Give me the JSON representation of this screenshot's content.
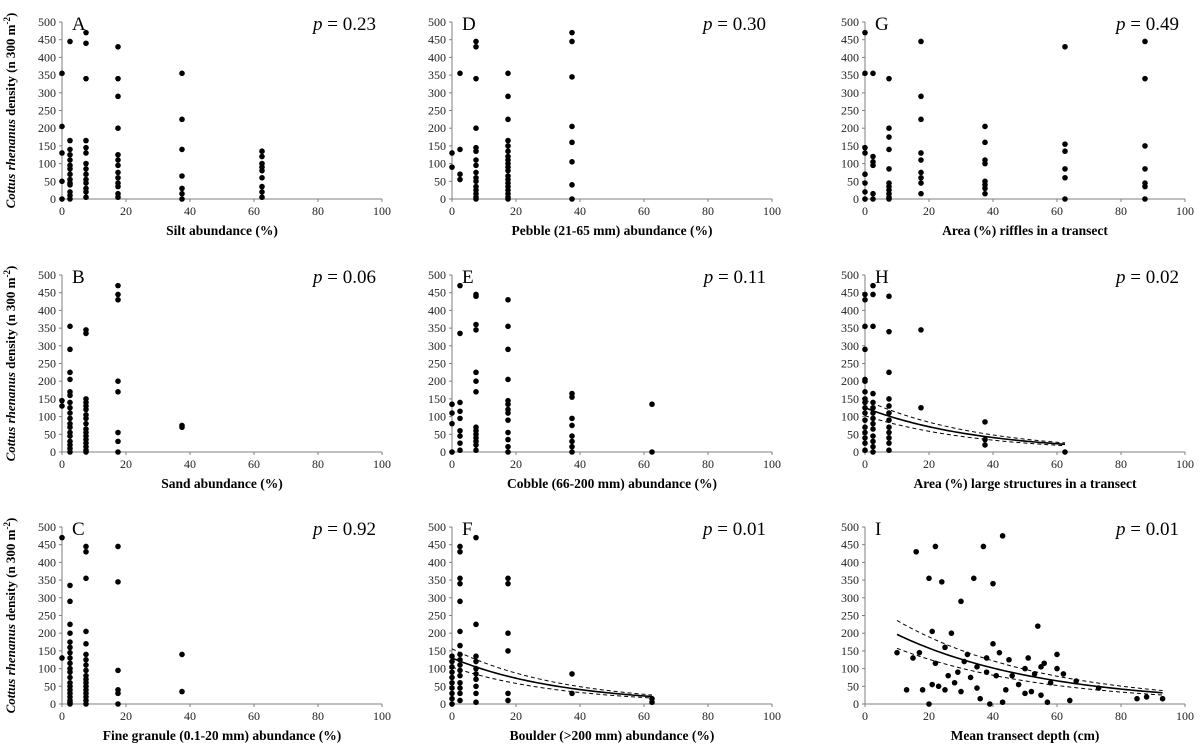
{
  "figure": {
    "ylabel_italic": "Cottus rhenanus",
    "ylabel_rest": " density (n 300 m",
    "ylabel_sup": "-2",
    "ylabel_close": ")"
  },
  "chart_data": [
    {
      "type": "scatter",
      "panel": "A",
      "xlabel": "Silt abundance (%)",
      "p_label": "p",
      "p_value": "= 0.23",
      "xlim": [
        0,
        100
      ],
      "ylim": [
        0,
        500
      ],
      "x": [
        0,
        0,
        0,
        0,
        0,
        2.5,
        2.5,
        2.5,
        2.5,
        2.5,
        2.5,
        2.5,
        2.5,
        2.5,
        2.5,
        2.5,
        2.5,
        2.5,
        2.5,
        7.5,
        7.5,
        7.5,
        7.5,
        7.5,
        7.5,
        7.5,
        7.5,
        7.5,
        7.5,
        7.5,
        7.5,
        7.5,
        7.5,
        17.5,
        17.5,
        17.5,
        17.5,
        17.5,
        17.5,
        17.5,
        17.5,
        17.5,
        17.5,
        17.5,
        17.5,
        17.5,
        37.5,
        37.5,
        37.5,
        37.5,
        37.5,
        37.5,
        37.5,
        62.5,
        62.5,
        62.5,
        62.5,
        62.5,
        62.5,
        62.5,
        62.5,
        62.5
      ],
      "y": [
        355,
        205,
        130,
        50,
        0,
        445,
        165,
        140,
        125,
        110,
        95,
        85,
        70,
        55,
        45,
        40,
        20,
        10,
        0,
        470,
        440,
        340,
        165,
        145,
        130,
        100,
        85,
        70,
        55,
        45,
        30,
        20,
        5,
        430,
        340,
        290,
        200,
        125,
        110,
        95,
        75,
        60,
        45,
        35,
        15,
        5,
        355,
        225,
        140,
        65,
        30,
        15,
        0,
        135,
        120,
        100,
        90,
        80,
        60,
        35,
        20,
        5
      ]
    },
    {
      "type": "scatter",
      "panel": "D",
      "xlabel": "Pebble (21-65 mm) abundance (%)",
      "p_label": "p",
      "p_value": "= 0.30",
      "xlim": [
        0,
        100
      ],
      "ylim": [
        0,
        500
      ],
      "x": [
        0,
        0,
        2.5,
        2.5,
        2.5,
        2.5,
        7.5,
        7.5,
        7.5,
        7.5,
        7.5,
        7.5,
        7.5,
        7.5,
        7.5,
        7.5,
        7.5,
        7.5,
        7.5,
        7.5,
        7.5,
        7.5,
        17.5,
        17.5,
        17.5,
        17.5,
        17.5,
        17.5,
        17.5,
        17.5,
        17.5,
        17.5,
        17.5,
        17.5,
        17.5,
        17.5,
        17.5,
        17.5,
        17.5,
        17.5,
        17.5,
        37.5,
        37.5,
        37.5,
        37.5,
        37.5,
        37.5,
        37.5,
        37.5
      ],
      "y": [
        130,
        90,
        355,
        140,
        70,
        55,
        445,
        430,
        340,
        200,
        145,
        135,
        110,
        95,
        75,
        60,
        50,
        35,
        25,
        15,
        5,
        0,
        355,
        290,
        225,
        165,
        150,
        135,
        120,
        110,
        100,
        90,
        80,
        65,
        55,
        45,
        35,
        25,
        15,
        5,
        0,
        470,
        445,
        345,
        205,
        160,
        105,
        40,
        0
      ]
    },
    {
      "type": "scatter",
      "panel": "G",
      "xlabel": "Area (%) riffles in a transect",
      "p_label": "p",
      "p_value": "= 0.49",
      "xlim": [
        0,
        100
      ],
      "ylim": [
        0,
        500
      ],
      "x": [
        0,
        0,
        0,
        0,
        0,
        0,
        0,
        0,
        2.5,
        2.5,
        2.5,
        2.5,
        2.5,
        2.5,
        7.5,
        7.5,
        7.5,
        7.5,
        7.5,
        7.5,
        7.5,
        7.5,
        7.5,
        7.5,
        7.5,
        17.5,
        17.5,
        17.5,
        17.5,
        17.5,
        17.5,
        17.5,
        17.5,
        17.5,
        37.5,
        37.5,
        37.5,
        37.5,
        37.5,
        37.5,
        37.5,
        37.5,
        62.5,
        62.5,
        62.5,
        62.5,
        62.5,
        62.5,
        87.5,
        87.5,
        87.5,
        87.5,
        87.5,
        87.5,
        87.5
      ],
      "y": [
        470,
        355,
        145,
        130,
        70,
        45,
        20,
        0,
        355,
        120,
        105,
        95,
        15,
        0,
        340,
        200,
        175,
        140,
        85,
        45,
        35,
        25,
        15,
        5,
        0,
        445,
        290,
        225,
        130,
        110,
        75,
        60,
        45,
        15,
        205,
        160,
        110,
        100,
        50,
        40,
        30,
        15,
        430,
        155,
        135,
        85,
        60,
        0,
        445,
        340,
        150,
        85,
        45,
        35,
        0
      ]
    },
    {
      "type": "scatter",
      "panel": "B",
      "xlabel": "Sand abundance (%)",
      "p_label": "p",
      "p_value": "= 0.06",
      "xlim": [
        0,
        100
      ],
      "ylim": [
        0,
        500
      ],
      "x": [
        0,
        0,
        2.5,
        2.5,
        2.5,
        2.5,
        2.5,
        2.5,
        2.5,
        2.5,
        2.5,
        2.5,
        2.5,
        2.5,
        2.5,
        2.5,
        2.5,
        2.5,
        2.5,
        2.5,
        7.5,
        7.5,
        7.5,
        7.5,
        7.5,
        7.5,
        7.5,
        7.5,
        7.5,
        7.5,
        7.5,
        7.5,
        7.5,
        7.5,
        7.5,
        7.5,
        7.5,
        17.5,
        17.5,
        17.5,
        17.5,
        17.5,
        17.5,
        17.5,
        17.5,
        37.5,
        37.5
      ],
      "y": [
        145,
        130,
        355,
        290,
        225,
        205,
        170,
        160,
        140,
        125,
        110,
        95,
        80,
        70,
        55,
        45,
        30,
        20,
        10,
        0,
        345,
        335,
        150,
        140,
        130,
        120,
        105,
        95,
        80,
        65,
        55,
        45,
        35,
        25,
        15,
        5,
        0,
        470,
        445,
        430,
        200,
        170,
        55,
        30,
        0,
        75,
        70
      ]
    },
    {
      "type": "scatter",
      "panel": "E",
      "xlabel": "Cobble (66-200 mm) abundance (%)",
      "p_label": "p",
      "p_value": "= 0.11",
      "xlim": [
        0,
        100
      ],
      "ylim": [
        0,
        500
      ],
      "x": [
        0,
        0,
        0,
        0,
        2.5,
        2.5,
        2.5,
        2.5,
        2.5,
        2.5,
        2.5,
        2.5,
        2.5,
        7.5,
        7.5,
        7.5,
        7.5,
        7.5,
        7.5,
        7.5,
        7.5,
        7.5,
        7.5,
        7.5,
        7.5,
        7.5,
        7.5,
        17.5,
        17.5,
        17.5,
        17.5,
        17.5,
        17.5,
        17.5,
        17.5,
        17.5,
        17.5,
        17.5,
        17.5,
        17.5,
        37.5,
        37.5,
        37.5,
        37.5,
        37.5,
        37.5,
        37.5,
        37.5,
        62.5,
        62.5
      ],
      "y": [
        135,
        110,
        80,
        0,
        470,
        335,
        140,
        115,
        95,
        60,
        45,
        25,
        5,
        445,
        440,
        360,
        345,
        225,
        200,
        170,
        70,
        60,
        50,
        40,
        30,
        20,
        5,
        430,
        355,
        290,
        205,
        145,
        135,
        120,
        110,
        90,
        55,
        35,
        15,
        0,
        165,
        155,
        95,
        75,
        45,
        30,
        15,
        0,
        135,
        0
      ]
    },
    {
      "type": "scatter",
      "panel": "H",
      "xlabel": "Area (%) large structures in a transect",
      "p_label": "p",
      "p_value": "= 0.02",
      "xlim": [
        0,
        100
      ],
      "ylim": [
        0,
        500
      ],
      "x": [
        0,
        0,
        0,
        0,
        0,
        0,
        0,
        0,
        0,
        0,
        0,
        0,
        0,
        0,
        0,
        0,
        0,
        2.5,
        2.5,
        2.5,
        2.5,
        2.5,
        2.5,
        2.5,
        2.5,
        2.5,
        2.5,
        2.5,
        2.5,
        2.5,
        2.5,
        7.5,
        7.5,
        7.5,
        7.5,
        7.5,
        7.5,
        7.5,
        7.5,
        7.5,
        7.5,
        7.5,
        7.5,
        17.5,
        17.5,
        37.5,
        37.5,
        37.5,
        62.5
      ],
      "y": [
        445,
        430,
        355,
        290,
        205,
        200,
        170,
        150,
        140,
        125,
        110,
        90,
        70,
        55,
        40,
        25,
        5,
        470,
        445,
        355,
        165,
        140,
        125,
        110,
        95,
        80,
        65,
        45,
        30,
        15,
        0,
        440,
        340,
        225,
        150,
        130,
        110,
        90,
        70,
        55,
        40,
        25,
        5,
        345,
        125,
        85,
        35,
        20,
        0
      ],
      "fit": {
        "a": 125,
        "b": 0.028,
        "ci_lo_factor": 0.82,
        "ci_hi_factor": 1.18
      }
    },
    {
      "type": "scatter",
      "panel": "C",
      "xlabel": "Fine granule (0.1-20 mm) abundance (%)",
      "p_label": "p",
      "p_value": "= 0.92",
      "xlim": [
        0,
        100
      ],
      "ylim": [
        0,
        500
      ],
      "x": [
        0,
        0,
        2.5,
        2.5,
        2.5,
        2.5,
        2.5,
        2.5,
        2.5,
        2.5,
        2.5,
        2.5,
        2.5,
        2.5,
        2.5,
        2.5,
        2.5,
        2.5,
        2.5,
        2.5,
        2.5,
        2.5,
        7.5,
        7.5,
        7.5,
        7.5,
        7.5,
        7.5,
        7.5,
        7.5,
        7.5,
        7.5,
        7.5,
        7.5,
        7.5,
        7.5,
        7.5,
        7.5,
        7.5,
        7.5,
        17.5,
        17.5,
        17.5,
        17.5,
        17.5,
        17.5,
        37.5,
        37.5
      ],
      "y": [
        470,
        130,
        335,
        290,
        225,
        200,
        175,
        160,
        145,
        130,
        115,
        100,
        90,
        75,
        60,
        50,
        40,
        30,
        20,
        10,
        5,
        0,
        445,
        430,
        355,
        205,
        170,
        140,
        125,
        110,
        95,
        80,
        70,
        60,
        50,
        40,
        30,
        20,
        10,
        0,
        445,
        345,
        95,
        40,
        30,
        0,
        140,
        35
      ]
    },
    {
      "type": "scatter",
      "panel": "F",
      "xlabel": "Boulder (>200 mm) abundance (%)",
      "p_label": "p",
      "p_value": "= 0.01",
      "xlim": [
        0,
        100
      ],
      "ylim": [
        0,
        500
      ],
      "x": [
        0,
        0,
        0,
        0,
        0,
        0,
        0,
        0,
        0,
        0,
        2.5,
        2.5,
        2.5,
        2.5,
        2.5,
        2.5,
        2.5,
        2.5,
        2.5,
        2.5,
        2.5,
        2.5,
        2.5,
        2.5,
        2.5,
        2.5,
        7.5,
        7.5,
        7.5,
        7.5,
        7.5,
        7.5,
        7.5,
        7.5,
        7.5,
        7.5,
        17.5,
        17.5,
        17.5,
        17.5,
        17.5,
        17.5,
        37.5,
        37.5,
        62.5,
        62.5
      ],
      "y": [
        135,
        120,
        105,
        90,
        75,
        60,
        45,
        30,
        15,
        0,
        445,
        430,
        355,
        340,
        290,
        205,
        165,
        140,
        125,
        110,
        95,
        80,
        60,
        45,
        30,
        10,
        470,
        225,
        135,
        120,
        100,
        85,
        70,
        50,
        30,
        5,
        355,
        340,
        200,
        150,
        30,
        10,
        85,
        30,
        15,
        5
      ],
      "fit": {
        "a": 130,
        "b": 0.029,
        "ci_lo_factor": 0.8,
        "ci_hi_factor": 1.2
      }
    },
    {
      "type": "scatter",
      "panel": "I",
      "xlabel": "Mean transect depth (cm)",
      "p_label": "p",
      "p_value": "= 0.01",
      "xlim": [
        0,
        100
      ],
      "ylim": [
        0,
        500
      ],
      "x": [
        10,
        13,
        15,
        16,
        17,
        18,
        20,
        20,
        21,
        21,
        22,
        22,
        23,
        24,
        25,
        25,
        26,
        27,
        28,
        29,
        30,
        30,
        31,
        32,
        33,
        34,
        35,
        35,
        36,
        37,
        38,
        38,
        39,
        40,
        40,
        41,
        42,
        43,
        43,
        44,
        45,
        46,
        48,
        50,
        50,
        51,
        52,
        53,
        54,
        55,
        55,
        56,
        57,
        58,
        60,
        60,
        62,
        64,
        66,
        73,
        85,
        88,
        93
      ],
      "y": [
        145,
        40,
        130,
        430,
        145,
        40,
        0,
        355,
        205,
        55,
        445,
        115,
        50,
        345,
        160,
        40,
        80,
        200,
        60,
        90,
        290,
        35,
        120,
        140,
        75,
        355,
        45,
        105,
        15,
        445,
        130,
        90,
        0,
        340,
        170,
        80,
        145,
        475,
        5,
        40,
        125,
        80,
        55,
        100,
        30,
        130,
        35,
        85,
        220,
        25,
        105,
        115,
        5,
        60,
        140,
        100,
        85,
        10,
        65,
        45,
        15,
        20,
        15
      ],
      "fit": {
        "a": 245,
        "b": 0.022,
        "ci_lo_factor": 0.8,
        "ci_hi_factor": 1.2
      }
    }
  ]
}
